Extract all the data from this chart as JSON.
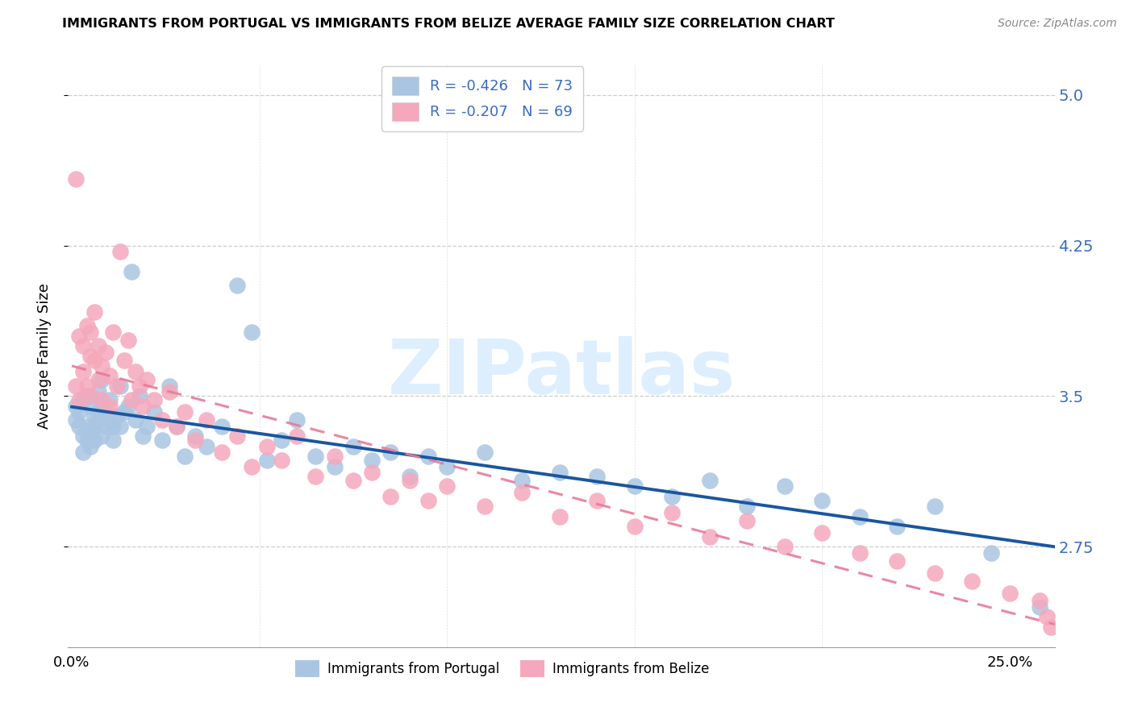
{
  "title": "IMMIGRANTS FROM PORTUGAL VS IMMIGRANTS FROM BELIZE AVERAGE FAMILY SIZE CORRELATION CHART",
  "source": "Source: ZipAtlas.com",
  "ylabel": "Average Family Size",
  "yticks": [
    2.75,
    3.5,
    4.25,
    5.0
  ],
  "ymin": 2.25,
  "ymax": 5.15,
  "xmin": -0.001,
  "xmax": 0.262,
  "legend_r1": "-0.426",
  "legend_n1": "73",
  "legend_r2": "-0.207",
  "legend_n2": "69",
  "color_portugal": "#aac5e2",
  "color_belize": "#f5a8bc",
  "trendline_portugal_color": "#1a56a0",
  "trendline_belize_color": "#e87a9a",
  "watermark": "ZIPatlas",
  "watermark_color": "#ddeeff",
  "portugal_x": [
    0.001,
    0.001,
    0.002,
    0.002,
    0.003,
    0.003,
    0.003,
    0.004,
    0.004,
    0.004,
    0.005,
    0.005,
    0.005,
    0.006,
    0.006,
    0.006,
    0.007,
    0.007,
    0.008,
    0.008,
    0.008,
    0.009,
    0.009,
    0.01,
    0.01,
    0.011,
    0.011,
    0.012,
    0.013,
    0.013,
    0.014,
    0.015,
    0.016,
    0.017,
    0.018,
    0.019,
    0.02,
    0.022,
    0.024,
    0.026,
    0.028,
    0.03,
    0.033,
    0.036,
    0.04,
    0.044,
    0.048,
    0.052,
    0.056,
    0.06,
    0.065,
    0.07,
    0.075,
    0.08,
    0.085,
    0.09,
    0.095,
    0.1,
    0.11,
    0.12,
    0.13,
    0.14,
    0.15,
    0.16,
    0.17,
    0.18,
    0.19,
    0.2,
    0.21,
    0.22,
    0.23,
    0.245,
    0.258
  ],
  "portugal_y": [
    3.45,
    3.38,
    3.42,
    3.35,
    3.48,
    3.3,
    3.22,
    3.5,
    3.35,
    3.28,
    3.45,
    3.32,
    3.25,
    3.4,
    3.35,
    3.28,
    3.52,
    3.38,
    3.58,
    3.45,
    3.3,
    3.42,
    3.35,
    3.48,
    3.38,
    3.35,
    3.28,
    3.4,
    3.55,
    3.35,
    3.42,
    3.45,
    4.12,
    3.38,
    3.5,
    3.3,
    3.35,
    3.42,
    3.28,
    3.55,
    3.35,
    3.2,
    3.3,
    3.25,
    3.35,
    4.05,
    3.82,
    3.18,
    3.28,
    3.38,
    3.2,
    3.15,
    3.25,
    3.18,
    3.22,
    3.1,
    3.2,
    3.15,
    3.22,
    3.08,
    3.12,
    3.1,
    3.05,
    3.0,
    3.08,
    2.95,
    3.05,
    2.98,
    2.9,
    2.85,
    2.95,
    2.72,
    2.45
  ],
  "belize_x": [
    0.001,
    0.001,
    0.002,
    0.002,
    0.003,
    0.003,
    0.004,
    0.004,
    0.005,
    0.005,
    0.005,
    0.006,
    0.006,
    0.007,
    0.007,
    0.008,
    0.008,
    0.009,
    0.01,
    0.01,
    0.011,
    0.012,
    0.013,
    0.014,
    0.015,
    0.016,
    0.017,
    0.018,
    0.019,
    0.02,
    0.022,
    0.024,
    0.026,
    0.028,
    0.03,
    0.033,
    0.036,
    0.04,
    0.044,
    0.048,
    0.052,
    0.056,
    0.06,
    0.065,
    0.07,
    0.075,
    0.08,
    0.085,
    0.09,
    0.095,
    0.1,
    0.11,
    0.12,
    0.13,
    0.14,
    0.15,
    0.16,
    0.17,
    0.18,
    0.19,
    0.2,
    0.21,
    0.22,
    0.23,
    0.24,
    0.25,
    0.258,
    0.26,
    0.261
  ],
  "belize_y": [
    3.55,
    4.58,
    3.8,
    3.48,
    3.75,
    3.62,
    3.85,
    3.55,
    3.7,
    3.82,
    3.5,
    3.68,
    3.92,
    3.75,
    3.58,
    3.65,
    3.48,
    3.72,
    3.6,
    3.45,
    3.82,
    3.55,
    4.22,
    3.68,
    3.78,
    3.48,
    3.62,
    3.55,
    3.45,
    3.58,
    3.48,
    3.38,
    3.52,
    3.35,
    3.42,
    3.28,
    3.38,
    3.22,
    3.3,
    3.15,
    3.25,
    3.18,
    3.3,
    3.1,
    3.2,
    3.08,
    3.12,
    3.0,
    3.08,
    2.98,
    3.05,
    2.95,
    3.02,
    2.9,
    2.98,
    2.85,
    2.92,
    2.8,
    2.88,
    2.75,
    2.82,
    2.72,
    2.68,
    2.62,
    2.58,
    2.52,
    2.48,
    2.4,
    2.35
  ]
}
